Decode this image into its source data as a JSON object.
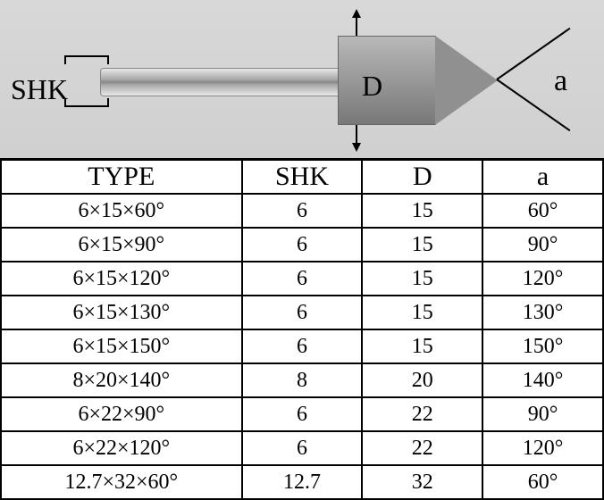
{
  "diagram": {
    "shk_label": "SHK",
    "d_label": "D",
    "a_label": "a",
    "background_color": "#d4d4d4",
    "tool_color": "#a0a0a0"
  },
  "table": {
    "columns": [
      {
        "key": "type",
        "label": "TYPE",
        "width_pct": 40
      },
      {
        "key": "shk",
        "label": "SHK",
        "width_pct": 20
      },
      {
        "key": "d",
        "label": "D",
        "width_pct": 20
      },
      {
        "key": "a",
        "label": "a",
        "width_pct": 20
      }
    ],
    "rows": [
      {
        "type": "6×15×60°",
        "shk": "6",
        "d": "15",
        "a": "60°"
      },
      {
        "type": "6×15×90°",
        "shk": "6",
        "d": "15",
        "a": "90°"
      },
      {
        "type": "6×15×120°",
        "shk": "6",
        "d": "15",
        "a": "120°"
      },
      {
        "type": "6×15×130°",
        "shk": "6",
        "d": "15",
        "a": "130°"
      },
      {
        "type": "6×15×150°",
        "shk": "6",
        "d": "15",
        "a": "150°"
      },
      {
        "type": "8×20×140°",
        "shk": "8",
        "d": "20",
        "a": "140°"
      },
      {
        "type": "6×22×90°",
        "shk": "6",
        "d": "22",
        "a": "90°"
      },
      {
        "type": "6×22×120°",
        "shk": "6",
        "d": "22",
        "a": "120°"
      },
      {
        "type": "12.7×32×60°",
        "shk": "12.7",
        "d": "32",
        "a": "60°"
      }
    ],
    "header_fontsize": 30,
    "cell_fontsize": 24,
    "border_color": "#000000",
    "background_color": "#ffffff",
    "text_color": "#000000"
  }
}
